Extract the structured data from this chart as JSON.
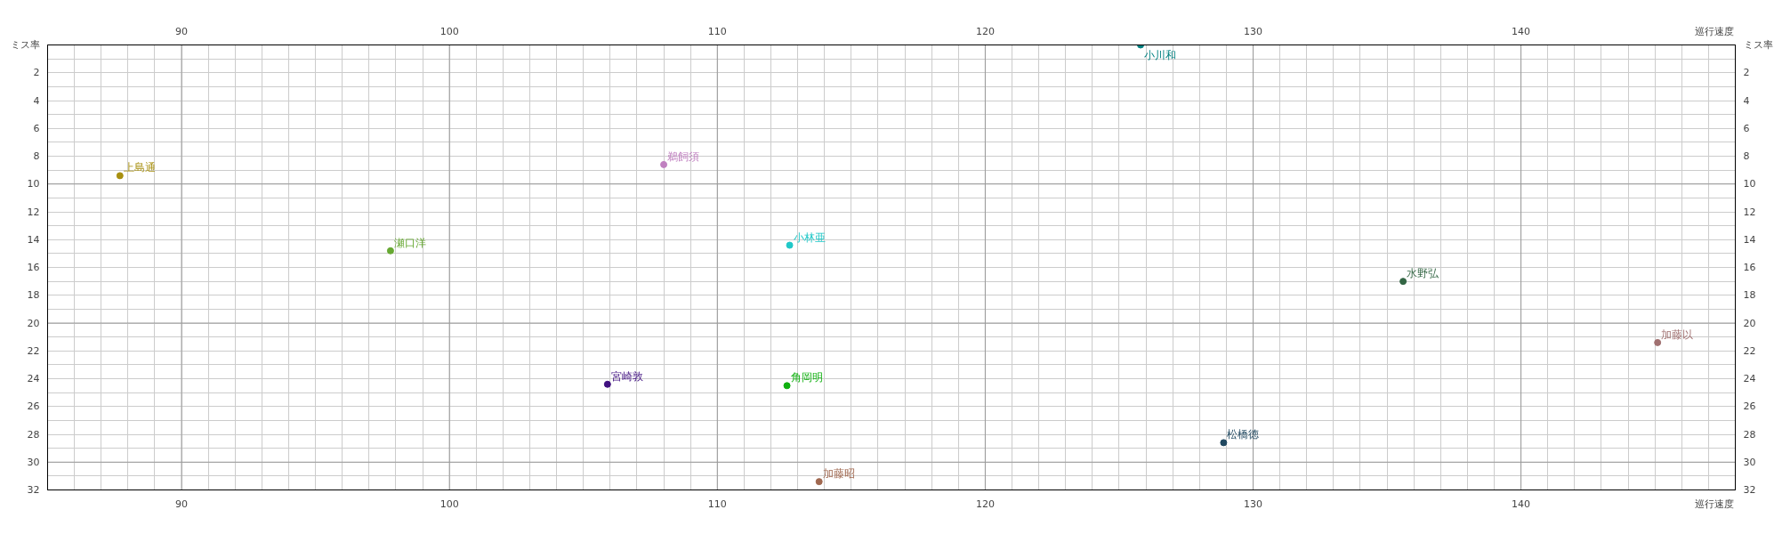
{
  "chart_data": {
    "type": "scatter",
    "xlabel": "巡行速度",
    "x2label": "巡行速度",
    "ylabel": "ミス率",
    "y2label": "ミス率",
    "xlim": [
      85,
      148
    ],
    "x2lim": [
      85,
      148
    ],
    "ylim": [
      32,
      0
    ],
    "y2lim": [
      32,
      0
    ],
    "xticks": [
      {
        "value": 85,
        "label": null
      },
      {
        "value": 86,
        "label": null
      },
      {
        "value": 87,
        "label": null
      },
      {
        "value": 88,
        "label": null
      },
      {
        "value": 89,
        "label": null
      },
      90,
      {
        "value": 91,
        "label": null
      },
      {
        "value": 92,
        "label": null
      },
      {
        "value": 93,
        "label": null
      },
      {
        "value": 94,
        "label": null
      },
      {
        "value": 95,
        "label": null
      },
      {
        "value": 96,
        "label": null
      },
      {
        "value": 97,
        "label": null
      },
      {
        "value": 98,
        "label": null
      },
      {
        "value": 99,
        "label": null
      },
      100,
      {
        "value": 101,
        "label": null
      },
      {
        "value": 102,
        "label": null
      },
      {
        "value": 103,
        "label": null
      },
      {
        "value": 104,
        "label": null
      },
      {
        "value": 105,
        "label": null
      },
      {
        "value": 106,
        "label": null
      },
      {
        "value": 107,
        "label": null
      },
      {
        "value": 108,
        "label": null
      },
      {
        "value": 109,
        "label": null
      },
      110,
      {
        "value": 111,
        "label": null
      },
      {
        "value": 112,
        "label": null
      },
      {
        "value": 113,
        "label": null
      },
      {
        "value": 114,
        "label": null
      },
      {
        "value": 115,
        "label": null
      },
      {
        "value": 116,
        "label": null
      },
      {
        "value": 117,
        "label": null
      },
      {
        "value": 118,
        "label": null
      },
      {
        "value": 119,
        "label": null
      },
      120,
      {
        "value": 121,
        "label": null
      },
      {
        "value": 122,
        "label": null
      },
      {
        "value": 123,
        "label": null
      },
      {
        "value": 124,
        "label": null
      },
      {
        "value": 125,
        "label": null
      },
      {
        "value": 126,
        "label": null
      },
      {
        "value": 127,
        "label": null
      },
      {
        "value": 128,
        "label": null
      },
      {
        "value": 129,
        "label": null
      },
      130,
      {
        "value": 131,
        "label": null
      },
      {
        "value": 132,
        "label": null
      },
      {
        "value": 133,
        "label": null
      },
      {
        "value": 134,
        "label": null
      },
      {
        "value": 135,
        "label": null
      },
      {
        "value": 136,
        "label": null
      },
      {
        "value": 137,
        "label": null
      },
      {
        "value": 138,
        "label": null
      },
      {
        "value": 139,
        "label": null
      },
      140,
      {
        "value": 141,
        "label": null
      },
      {
        "value": 142,
        "label": null
      },
      {
        "value": 143,
        "label": null
      },
      {
        "value": 144,
        "label": null
      },
      {
        "value": 145,
        "label": null
      },
      {
        "value": 146,
        "label": null
      },
      {
        "value": 147,
        "label": null
      }
    ],
    "x2ticks": [
      90,
      100,
      110,
      120,
      130,
      140
    ],
    "yticks": [
      {
        "value": 0,
        "label": null
      },
      {
        "value": 1,
        "label": null
      },
      2,
      {
        "value": 3,
        "label": null
      },
      4,
      {
        "value": 5,
        "label": null
      },
      6,
      {
        "value": 7,
        "label": null
      },
      8,
      {
        "value": 9,
        "label": null
      },
      10,
      {
        "value": 11,
        "label": null
      },
      12,
      {
        "value": 13,
        "label": null
      },
      14,
      {
        "value": 15,
        "label": null
      },
      16,
      {
        "value": 17,
        "label": null
      },
      18,
      {
        "value": 19,
        "label": null
      },
      20,
      {
        "value": 21,
        "label": null
      },
      22,
      {
        "value": 23,
        "label": null
      },
      24,
      {
        "value": 25,
        "label": null
      },
      26,
      {
        "value": 27,
        "label": null
      },
      28,
      {
        "value": 29,
        "label": null
      },
      30,
      {
        "value": 31,
        "label": null
      },
      32
    ],
    "y2ticks": [
      2,
      4,
      6,
      8,
      10,
      12,
      14,
      16,
      18,
      20,
      22,
      24,
      26,
      28,
      30,
      32
    ],
    "grid": true,
    "marker": "circle",
    "series": [
      {
        "name": "上島通",
        "color": "#a89010",
        "x": [
          87.7
        ],
        "values": [
          9.4
        ]
      },
      {
        "name": "瀬口洋",
        "color": "#66a832",
        "x": [
          97.8
        ],
        "values": [
          14.8
        ]
      },
      {
        "name": "鵜飼須",
        "color": "#c080c0",
        "x": [
          108.0
        ],
        "values": [
          8.6
        ]
      },
      {
        "name": "小林亜",
        "color": "#20c8c8",
        "x": [
          112.7
        ],
        "values": [
          14.4
        ]
      },
      {
        "name": "小川和",
        "color": "#008080",
        "x": [
          125.8
        ],
        "values": [
          0
        ]
      },
      {
        "name": "水野弘",
        "color": "#336644",
        "x": [
          135.6
        ],
        "values": [
          17.0
        ]
      },
      {
        "name": "加藤以",
        "color": "#a07070",
        "x": [
          145.1
        ],
        "values": [
          21.4
        ]
      },
      {
        "name": "宮崎敦",
        "color": "#401080",
        "x": [
          105.9
        ],
        "values": [
          24.4
        ]
      },
      {
        "name": "角岡明",
        "color": "#10b010",
        "x": [
          112.6
        ],
        "values": [
          24.5
        ]
      },
      {
        "name": "松橋徳",
        "color": "#204860",
        "x": [
          128.9
        ],
        "values": [
          28.6
        ]
      },
      {
        "name": "加藤昭",
        "color": "#a06850",
        "x": [
          113.8
        ],
        "values": [
          31.4
        ]
      }
    ]
  }
}
